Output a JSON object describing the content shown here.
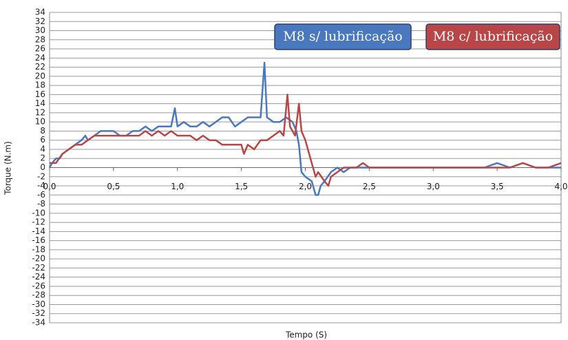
{
  "chart_data": {
    "type": "line",
    "xlabel": "Tempo (S)",
    "ylabel": "Torque (N.m)",
    "xlim": [
      0,
      4
    ],
    "ylim": [
      -34,
      34
    ],
    "xticks": [
      {
        "value": 0,
        "label": "0,0"
      },
      {
        "value": 0.5,
        "label": "0,5"
      },
      {
        "value": 1,
        "label": "1,0"
      },
      {
        "value": 1.5,
        "label": "1,5"
      },
      {
        "value": 2,
        "label": "2,0"
      },
      {
        "value": 2.5,
        "label": "2,5"
      },
      {
        "value": 3,
        "label": "3,0"
      },
      {
        "value": 3.5,
        "label": "3,5"
      },
      {
        "value": 4,
        "label": "4,0"
      }
    ],
    "yticks": [
      34,
      32,
      30,
      28,
      26,
      24,
      22,
      20,
      18,
      16,
      14,
      12,
      10,
      8,
      6,
      4,
      2,
      0,
      -2,
      -4,
      -6,
      -8,
      -10,
      -12,
      -14,
      -16,
      -18,
      -20,
      -22,
      -24,
      -26,
      -28,
      -30,
      -32,
      -34
    ],
    "grid": true,
    "series": [
      {
        "name": "M8 s/ lubrificação",
        "color": "#4a78be",
        "x": [
          0,
          0.02,
          0.05,
          0.08,
          0.1,
          0.15,
          0.2,
          0.25,
          0.28,
          0.3,
          0.35,
          0.4,
          0.45,
          0.5,
          0.55,
          0.6,
          0.65,
          0.7,
          0.75,
          0.8,
          0.85,
          0.9,
          0.95,
          0.98,
          1,
          1.05,
          1.1,
          1.15,
          1.2,
          1.25,
          1.3,
          1.35,
          1.4,
          1.45,
          1.5,
          1.55,
          1.6,
          1.65,
          1.68,
          1.7,
          1.75,
          1.8,
          1.85,
          1.9,
          1.93,
          1.95,
          1.97,
          2,
          2.05,
          2.08,
          2.1,
          2.12,
          2.15,
          2.2,
          2.25,
          2.3,
          2.35,
          2.4,
          2.5,
          2.6,
          2.7,
          2.8,
          2.9,
          3,
          3.1,
          3.2,
          3.3,
          3.4,
          3.5,
          3.6,
          3.7,
          3.8,
          3.9,
          4
        ],
        "values": [
          0,
          1,
          2,
          2,
          3,
          4,
          5,
          6,
          7,
          6,
          7,
          8,
          8,
          8,
          7,
          7,
          8,
          8,
          9,
          8,
          9,
          9,
          9,
          13,
          9,
          10,
          9,
          9,
          10,
          9,
          10,
          11,
          11,
          9,
          10,
          11,
          11,
          11,
          23,
          11,
          10,
          10,
          11,
          10,
          8,
          5,
          -1,
          -2,
          -3,
          -6,
          -6,
          -4,
          -3,
          -1,
          0,
          -1,
          0,
          0,
          0,
          0,
          0,
          0,
          0,
          0,
          0,
          0,
          0,
          0,
          1,
          0,
          1,
          0,
          0,
          0
        ]
      },
      {
        "name": "M8 c/ lubrificação",
        "color": "#b84646",
        "x": [
          0,
          0.05,
          0.1,
          0.15,
          0.2,
          0.25,
          0.3,
          0.35,
          0.4,
          0.45,
          0.5,
          0.6,
          0.7,
          0.75,
          0.8,
          0.85,
          0.9,
          0.95,
          1,
          1.05,
          1.1,
          1.15,
          1.2,
          1.25,
          1.3,
          1.35,
          1.4,
          1.45,
          1.5,
          1.52,
          1.55,
          1.6,
          1.65,
          1.7,
          1.75,
          1.8,
          1.83,
          1.86,
          1.88,
          1.9,
          1.92,
          1.95,
          1.97,
          2,
          2.05,
          2.08,
          2.1,
          2.15,
          2.18,
          2.2,
          2.25,
          2.3,
          2.4,
          2.45,
          2.5,
          2.6,
          2.7,
          2.8,
          2.9,
          3,
          3.1,
          3.2,
          3.3,
          3.4,
          3.5,
          3.6,
          3.7,
          3.8,
          3.9,
          4
        ],
        "values": [
          1,
          1,
          3,
          4,
          5,
          5,
          6,
          7,
          7,
          7,
          7,
          7,
          7,
          8,
          7,
          8,
          7,
          8,
          7,
          7,
          7,
          6,
          7,
          6,
          6,
          5,
          5,
          5,
          5,
          3,
          5,
          4,
          6,
          6,
          7,
          8,
          7,
          16,
          9,
          8,
          7,
          14,
          8,
          6,
          1,
          -2,
          -1,
          -3,
          -4,
          -2,
          -1,
          0,
          0,
          1,
          0,
          0,
          0,
          0,
          0,
          0,
          0,
          0,
          0,
          0,
          0,
          0,
          1,
          0,
          0,
          1
        ]
      }
    ]
  }
}
